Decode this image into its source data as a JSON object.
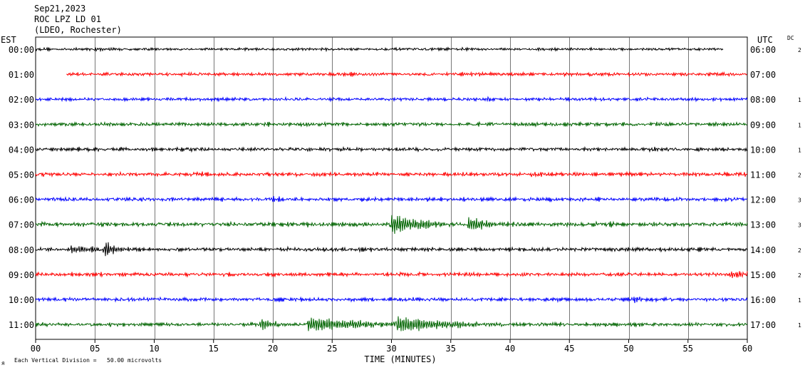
{
  "header": {
    "date": "Sep21,2023",
    "station": "ROC LPZ LD 01",
    "network": "(LDEO, Rochester)"
  },
  "left_axis_title": "EST",
  "right_axis_title": "UTC",
  "dc_title": "DC",
  "footer": {
    "mark": "ᴙ",
    "division_note": "Each Vertical Division =   50.00 microvolts"
  },
  "chart_data": {
    "type": "line",
    "xlabel": "TIME (MINUTES)",
    "xlim": [
      0,
      60
    ],
    "x_ticks": [
      "00",
      "05",
      "10",
      "15",
      "20",
      "25",
      "30",
      "35",
      "40",
      "45",
      "50",
      "55",
      "60"
    ],
    "grid": true,
    "trace_colors": [
      "#000000",
      "#ff0000",
      "#0000ff",
      "#006400"
    ],
    "rows": [
      {
        "est": "00:00",
        "utc": "06:00",
        "dc": "2",
        "color": "#000000",
        "start": 0,
        "end": 58,
        "amp": 2.5,
        "events": [
          {
            "t": 5,
            "dur": 1.5,
            "amp": 3
          }
        ]
      },
      {
        "est": "01:00",
        "utc": "07:00",
        "dc": "",
        "color": "#ff0000",
        "start": 2.6,
        "end": 60,
        "amp": 3.0,
        "events": [
          {
            "t": 36,
            "dur": 1.5,
            "amp": 2
          }
        ]
      },
      {
        "est": "02:00",
        "utc": "08:00",
        "dc": "1",
        "color": "#0000ff",
        "start": 0,
        "end": 60,
        "amp": 3.0,
        "events": [
          {
            "t": 38,
            "dur": 1.0,
            "amp": 2
          }
        ]
      },
      {
        "est": "03:00",
        "utc": "09:00",
        "dc": "1",
        "color": "#006400",
        "start": 0,
        "end": 60,
        "amp": 3.5,
        "events": []
      },
      {
        "est": "04:00",
        "utc": "10:00",
        "dc": "1",
        "color": "#000000",
        "start": 0,
        "end": 60,
        "amp": 3.5,
        "events": []
      },
      {
        "est": "05:00",
        "utc": "11:00",
        "dc": "2",
        "color": "#ff0000",
        "start": 0,
        "end": 60,
        "amp": 3.5,
        "events": [
          {
            "t": 23.5,
            "dur": 1.2,
            "amp": 3
          },
          {
            "t": 41.5,
            "dur": 1.2,
            "amp": 3
          }
        ]
      },
      {
        "est": "06:00",
        "utc": "12:00",
        "dc": "3",
        "color": "#0000ff",
        "start": 0,
        "end": 60,
        "amp": 3.5,
        "events": [
          {
            "t": 20,
            "dur": 1.5,
            "amp": 3
          }
        ]
      },
      {
        "est": "07:00",
        "utc": "13:00",
        "dc": "3",
        "color": "#006400",
        "start": 0,
        "end": 60,
        "amp": 4.0,
        "events": [
          {
            "t": 30,
            "dur": 2.5,
            "amp": 14
          },
          {
            "t": 36.5,
            "dur": 2,
            "amp": 8
          }
        ]
      },
      {
        "est": "08:00",
        "utc": "14:00",
        "dc": "2",
        "color": "#000000",
        "start": 0,
        "end": 60,
        "amp": 3.5,
        "events": [
          {
            "t": 3,
            "dur": 2,
            "amp": 5
          },
          {
            "t": 5.8,
            "dur": 1,
            "amp": 9
          }
        ]
      },
      {
        "est": "09:00",
        "utc": "15:00",
        "dc": "2",
        "color": "#ff0000",
        "start": 0,
        "end": 60,
        "amp": 3.5,
        "events": [
          {
            "t": 58.7,
            "dur": 1,
            "amp": 5
          }
        ]
      },
      {
        "est": "10:00",
        "utc": "16:00",
        "dc": "1",
        "color": "#0000ff",
        "start": 0,
        "end": 60,
        "amp": 3.5,
        "events": [
          {
            "t": 50.5,
            "dur": 0.5,
            "amp": 5
          }
        ]
      },
      {
        "est": "11:00",
        "utc": "17:00",
        "dc": "1",
        "color": "#006400",
        "start": 0,
        "end": 60,
        "amp": 3.5,
        "events": [
          {
            "t": 19,
            "dur": 1,
            "amp": 8
          },
          {
            "t": 23,
            "dur": 5,
            "amp": 10
          },
          {
            "t": 30.5,
            "dur": 4,
            "amp": 12
          }
        ]
      }
    ]
  }
}
